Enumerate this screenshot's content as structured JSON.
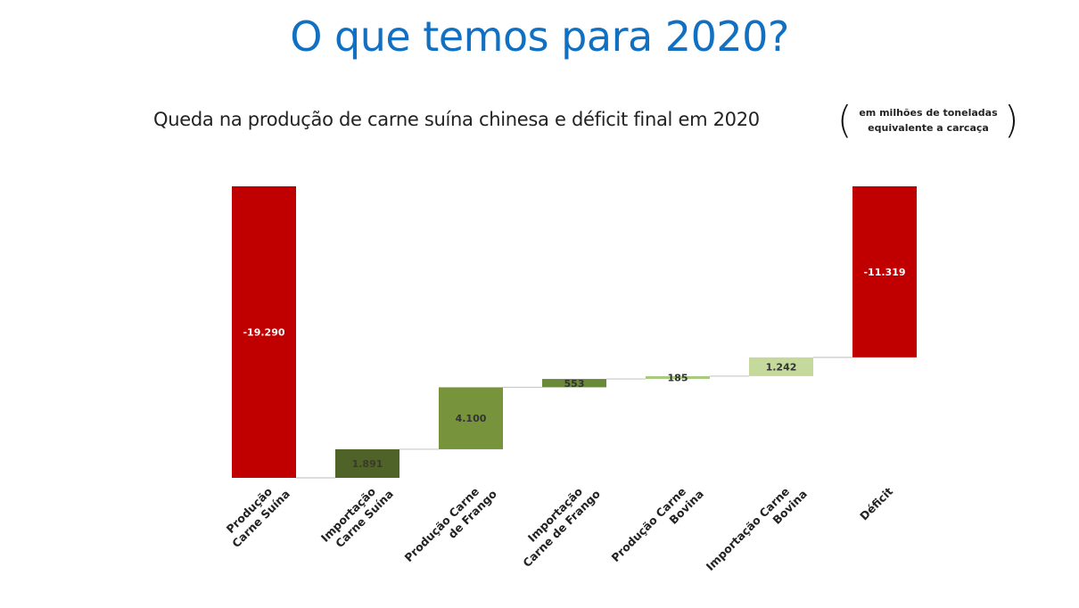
{
  "slide_title": "O que temos para 2020?",
  "chart_data": {
    "type": "waterfall",
    "title": "Queda na produção de carne suína chinesa e déficit final em 2020",
    "unit_note_line1": "em milhões de toneladas",
    "unit_note_line2": "equivalente a carcaça",
    "categories": [
      [
        "Produção",
        "Carne Suína"
      ],
      [
        "Importação",
        "Carne Suína"
      ],
      [
        "Produção Carne",
        "de Frango"
      ],
      [
        "Importação",
        "Carne de Frango"
      ],
      [
        "Produção Carne",
        "Bovina"
      ],
      [
        "Importação Carne",
        "Bovina"
      ],
      [
        "Déficit"
      ]
    ],
    "values": [
      -19290,
      1891,
      4100,
      553,
      185,
      1242,
      -11319
    ],
    "labels": [
      "-19.290",
      "1.891",
      "4.100",
      "553",
      "185",
      "1.242",
      "-11.319"
    ],
    "kinds": [
      "decrease",
      "increase",
      "increase",
      "increase",
      "increase",
      "increase",
      "total"
    ],
    "colors": [
      "#c00000",
      "#4f6228",
      "#77933c",
      "#6a8a3a",
      "#a9c880",
      "#c4d99b",
      "#c00000"
    ],
    "label_colors": [
      "#ffffff",
      "#3a3a2a",
      "#333333",
      "#333333",
      "#333333",
      "#333333",
      "#ffffff"
    ]
  }
}
